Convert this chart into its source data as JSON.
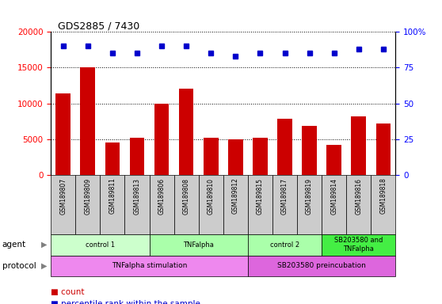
{
  "title": "GDS2885 / 7430",
  "samples": [
    "GSM189807",
    "GSM189809",
    "GSM189811",
    "GSM189813",
    "GSM189806",
    "GSM189808",
    "GSM189810",
    "GSM189812",
    "GSM189815",
    "GSM189817",
    "GSM189819",
    "GSM189814",
    "GSM189816",
    "GSM189818"
  ],
  "counts": [
    11400,
    15000,
    4500,
    5200,
    10000,
    12100,
    5200,
    5000,
    5200,
    7900,
    6800,
    4200,
    8200,
    7200
  ],
  "percentile_ranks": [
    90,
    90,
    85,
    85,
    90,
    90,
    85,
    83,
    85,
    85,
    85,
    85,
    88,
    88
  ],
  "bar_color": "#cc0000",
  "dot_color": "#0000cc",
  "ylim_left": [
    0,
    20000
  ],
  "ylim_right": [
    0,
    100
  ],
  "yticks_left": [
    0,
    5000,
    10000,
    15000,
    20000
  ],
  "yticks_right": [
    0,
    25,
    50,
    75,
    100
  ],
  "agent_groups": [
    {
      "label": "control 1",
      "start": 0,
      "end": 4,
      "color": "#ccffcc"
    },
    {
      "label": "TNFalpha",
      "start": 4,
      "end": 8,
      "color": "#aaffaa"
    },
    {
      "label": "control 2",
      "start": 8,
      "end": 11,
      "color": "#aaffaa"
    },
    {
      "label": "SB203580 and\nTNFalpha",
      "start": 11,
      "end": 14,
      "color": "#44ee44"
    }
  ],
  "protocol_groups": [
    {
      "label": "TNFalpha stimulation",
      "start": 0,
      "end": 8,
      "color": "#ee88ee"
    },
    {
      "label": "SB203580 preincubation",
      "start": 8,
      "end": 14,
      "color": "#dd66dd"
    }
  ],
  "label_bg_color": "#cccccc",
  "legend_count_color": "#cc0000",
  "legend_dot_color": "#0000cc",
  "background_color": "#ffffff"
}
